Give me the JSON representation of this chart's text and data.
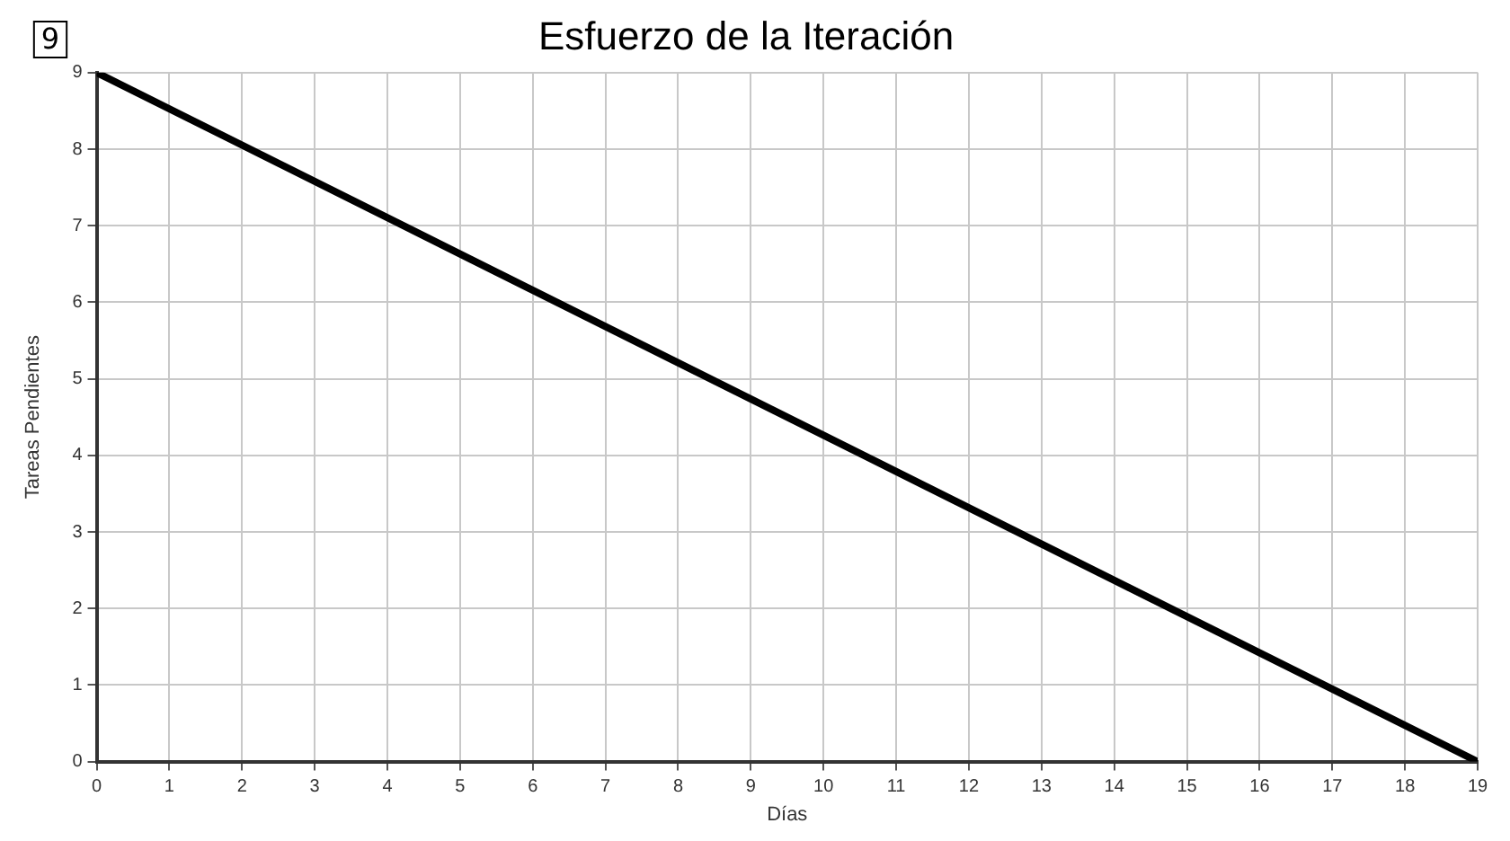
{
  "chart_data": {
    "type": "line",
    "title": "Esfuerzo de la Iteración",
    "xlabel": "Días",
    "ylabel": "Tareas Pendientes",
    "annotations": [
      "9"
    ],
    "x": [
      0,
      19
    ],
    "series": [
      {
        "color": "#000000",
        "values": [
          9,
          0
        ]
      }
    ],
    "xlim": [
      0,
      19
    ],
    "xticks": [
      0,
      1,
      2,
      3,
      4,
      5,
      6,
      7,
      8,
      9,
      10,
      11,
      12,
      13,
      14,
      15,
      16,
      17,
      18,
      19
    ],
    "ylim": [
      0,
      9
    ],
    "yticks": [
      0,
      1,
      2,
      3,
      4,
      5,
      6,
      7,
      8,
      9
    ],
    "grid": true,
    "legend": false,
    "marker": "none",
    "line_style": "solid"
  }
}
